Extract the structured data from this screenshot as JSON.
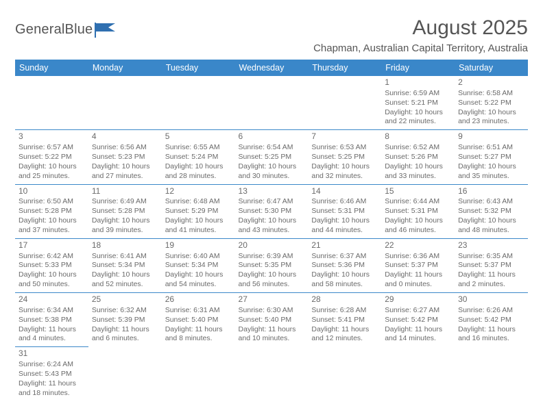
{
  "brand": {
    "name": "GeneralBlue"
  },
  "title": {
    "month": "August 2025",
    "location": "Chapman, Australian Capital Territory, Australia"
  },
  "colors": {
    "header_bg": "#3a87c9",
    "header_fg": "#ffffff",
    "text": "#6a6a6a",
    "rule": "#3a87c9",
    "page_bg": "#ffffff",
    "logo_accent": "#2f6fb0"
  },
  "weekdays": [
    "Sunday",
    "Monday",
    "Tuesday",
    "Wednesday",
    "Thursday",
    "Friday",
    "Saturday"
  ],
  "layout": {
    "first_day_column": 5,
    "days_in_month": 31,
    "columns": 7
  },
  "days": [
    {
      "n": 1,
      "sunrise": "6:59 AM",
      "sunset": "5:21 PM",
      "daylight": "10 hours and 22 minutes."
    },
    {
      "n": 2,
      "sunrise": "6:58 AM",
      "sunset": "5:22 PM",
      "daylight": "10 hours and 23 minutes."
    },
    {
      "n": 3,
      "sunrise": "6:57 AM",
      "sunset": "5:22 PM",
      "daylight": "10 hours and 25 minutes."
    },
    {
      "n": 4,
      "sunrise": "6:56 AM",
      "sunset": "5:23 PM",
      "daylight": "10 hours and 27 minutes."
    },
    {
      "n": 5,
      "sunrise": "6:55 AM",
      "sunset": "5:24 PM",
      "daylight": "10 hours and 28 minutes."
    },
    {
      "n": 6,
      "sunrise": "6:54 AM",
      "sunset": "5:25 PM",
      "daylight": "10 hours and 30 minutes."
    },
    {
      "n": 7,
      "sunrise": "6:53 AM",
      "sunset": "5:25 PM",
      "daylight": "10 hours and 32 minutes."
    },
    {
      "n": 8,
      "sunrise": "6:52 AM",
      "sunset": "5:26 PM",
      "daylight": "10 hours and 33 minutes."
    },
    {
      "n": 9,
      "sunrise": "6:51 AM",
      "sunset": "5:27 PM",
      "daylight": "10 hours and 35 minutes."
    },
    {
      "n": 10,
      "sunrise": "6:50 AM",
      "sunset": "5:28 PM",
      "daylight": "10 hours and 37 minutes."
    },
    {
      "n": 11,
      "sunrise": "6:49 AM",
      "sunset": "5:28 PM",
      "daylight": "10 hours and 39 minutes."
    },
    {
      "n": 12,
      "sunrise": "6:48 AM",
      "sunset": "5:29 PM",
      "daylight": "10 hours and 41 minutes."
    },
    {
      "n": 13,
      "sunrise": "6:47 AM",
      "sunset": "5:30 PM",
      "daylight": "10 hours and 43 minutes."
    },
    {
      "n": 14,
      "sunrise": "6:46 AM",
      "sunset": "5:31 PM",
      "daylight": "10 hours and 44 minutes."
    },
    {
      "n": 15,
      "sunrise": "6:44 AM",
      "sunset": "5:31 PM",
      "daylight": "10 hours and 46 minutes."
    },
    {
      "n": 16,
      "sunrise": "6:43 AM",
      "sunset": "5:32 PM",
      "daylight": "10 hours and 48 minutes."
    },
    {
      "n": 17,
      "sunrise": "6:42 AM",
      "sunset": "5:33 PM",
      "daylight": "10 hours and 50 minutes."
    },
    {
      "n": 18,
      "sunrise": "6:41 AM",
      "sunset": "5:34 PM",
      "daylight": "10 hours and 52 minutes."
    },
    {
      "n": 19,
      "sunrise": "6:40 AM",
      "sunset": "5:34 PM",
      "daylight": "10 hours and 54 minutes."
    },
    {
      "n": 20,
      "sunrise": "6:39 AM",
      "sunset": "5:35 PM",
      "daylight": "10 hours and 56 minutes."
    },
    {
      "n": 21,
      "sunrise": "6:37 AM",
      "sunset": "5:36 PM",
      "daylight": "10 hours and 58 minutes."
    },
    {
      "n": 22,
      "sunrise": "6:36 AM",
      "sunset": "5:37 PM",
      "daylight": "11 hours and 0 minutes."
    },
    {
      "n": 23,
      "sunrise": "6:35 AM",
      "sunset": "5:37 PM",
      "daylight": "11 hours and 2 minutes."
    },
    {
      "n": 24,
      "sunrise": "6:34 AM",
      "sunset": "5:38 PM",
      "daylight": "11 hours and 4 minutes."
    },
    {
      "n": 25,
      "sunrise": "6:32 AM",
      "sunset": "5:39 PM",
      "daylight": "11 hours and 6 minutes."
    },
    {
      "n": 26,
      "sunrise": "6:31 AM",
      "sunset": "5:40 PM",
      "daylight": "11 hours and 8 minutes."
    },
    {
      "n": 27,
      "sunrise": "6:30 AM",
      "sunset": "5:40 PM",
      "daylight": "11 hours and 10 minutes."
    },
    {
      "n": 28,
      "sunrise": "6:28 AM",
      "sunset": "5:41 PM",
      "daylight": "11 hours and 12 minutes."
    },
    {
      "n": 29,
      "sunrise": "6:27 AM",
      "sunset": "5:42 PM",
      "daylight": "11 hours and 14 minutes."
    },
    {
      "n": 30,
      "sunrise": "6:26 AM",
      "sunset": "5:42 PM",
      "daylight": "11 hours and 16 minutes."
    },
    {
      "n": 31,
      "sunrise": "6:24 AM",
      "sunset": "5:43 PM",
      "daylight": "11 hours and 18 minutes."
    }
  ],
  "labels": {
    "sunrise": "Sunrise:",
    "sunset": "Sunset:",
    "daylight": "Daylight:"
  }
}
